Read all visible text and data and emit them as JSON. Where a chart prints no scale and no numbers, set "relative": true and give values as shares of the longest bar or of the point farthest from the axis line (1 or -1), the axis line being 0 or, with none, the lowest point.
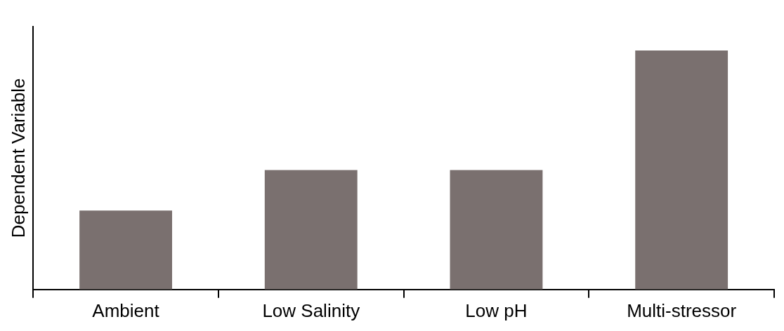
{
  "chart_data": {
    "type": "bar",
    "ylabel": "Dependent Variable",
    "categories": [
      "Ambient",
      "Low Salinity",
      "Low pH",
      "Multi-stressor"
    ],
    "values": [
      0.33,
      0.5,
      0.5,
      1
    ],
    "color": "#7a706f",
    "relative": true,
    "grid": false,
    "legend": false
  }
}
